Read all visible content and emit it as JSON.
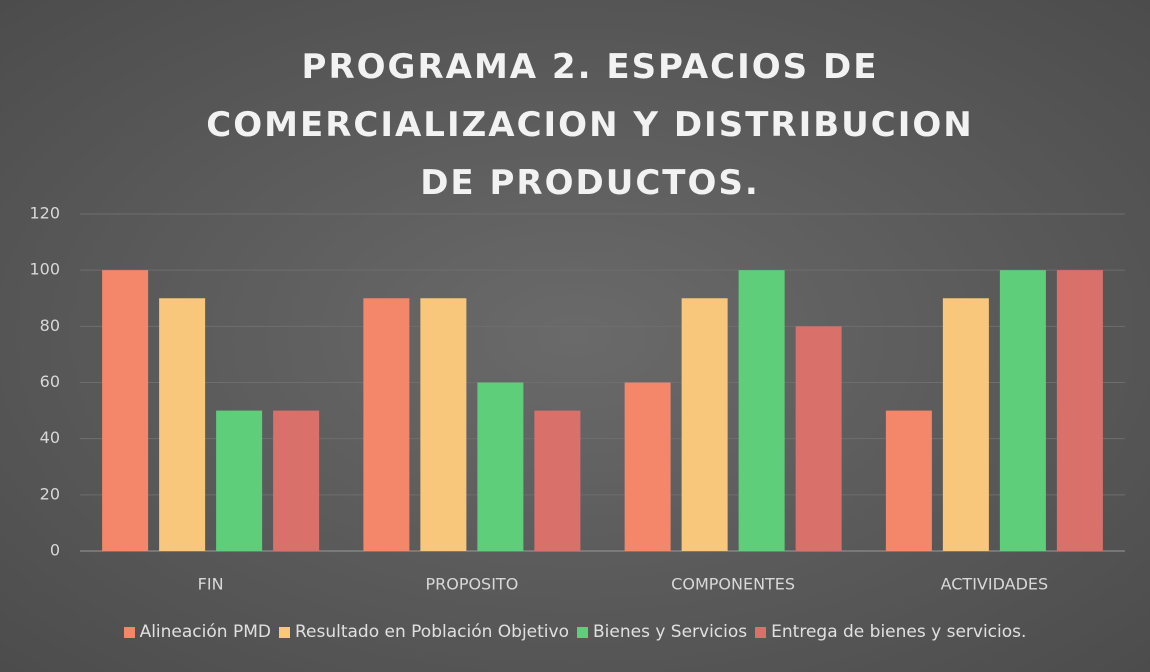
{
  "chart_data": {
    "type": "bar",
    "title": "PROGRAMA 2. ESPACIOS DE COMERCIALIZACION Y DISTRIBUCION DE PRODUCTOS.",
    "categories": [
      "FIN",
      "PROPOSITO",
      "COMPONENTES",
      "ACTIVIDADES"
    ],
    "series": [
      {
        "name": "Alineación PMD",
        "color": "#f4866a",
        "values": [
          100,
          90,
          60,
          50
        ]
      },
      {
        "name": "Resultado en Población Objetivo",
        "color": "#f8c77c",
        "values": [
          90,
          90,
          90,
          90
        ]
      },
      {
        "name": "Bienes y Servicios",
        "color": "#5fce7a",
        "values": [
          50,
          60,
          100,
          100
        ]
      },
      {
        "name": "Entrega de bienes y servicios.",
        "color": "#d9716a",
        "values": [
          50,
          50,
          80,
          100
        ]
      }
    ],
    "ylim": [
      0,
      120
    ],
    "yticks": [
      0,
      20,
      40,
      60,
      80,
      100,
      120
    ],
    "grid": true,
    "legend": "bottom"
  }
}
